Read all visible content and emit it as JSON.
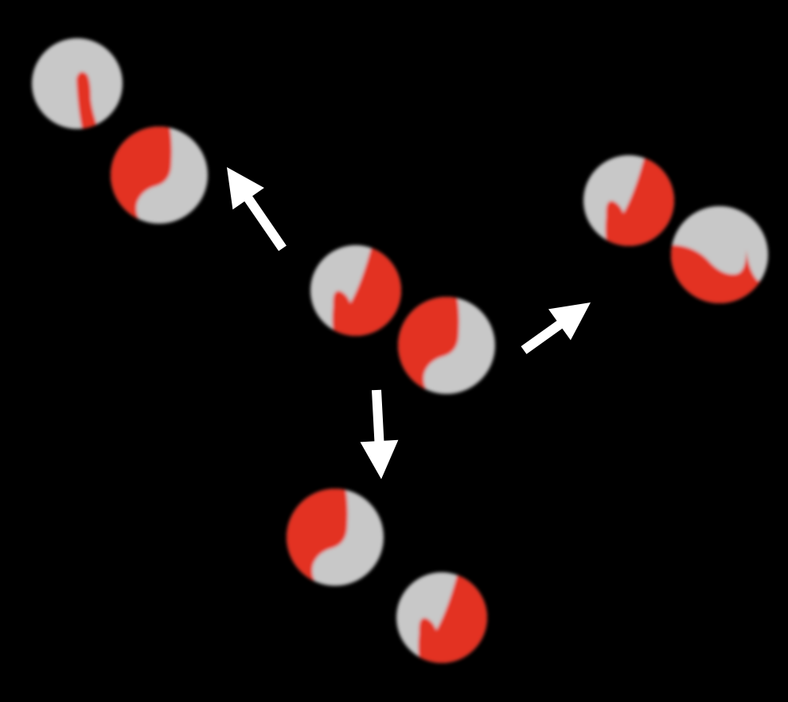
{
  "scene": {
    "background_color": "#000000",
    "ball_base_color": "#c8c8c8",
    "ball_mark_color": "#e33224",
    "arrow_color": "#ffffff",
    "center_pair": {
      "balls": [
        {
          "pattern": "check-mark"
        },
        {
          "pattern": "s-curve"
        }
      ]
    },
    "pairs": [
      {
        "direction": "up-left",
        "balls": [
          {
            "pattern": "thin-stroke"
          },
          {
            "pattern": "s-curve"
          }
        ]
      },
      {
        "direction": "up-right",
        "balls": [
          {
            "pattern": "check-mark"
          },
          {
            "pattern": "s-curve-lower"
          }
        ]
      },
      {
        "direction": "down",
        "balls": [
          {
            "pattern": "s-curve"
          },
          {
            "pattern": "check-mark"
          }
        ]
      }
    ],
    "arrow_count": 3
  }
}
